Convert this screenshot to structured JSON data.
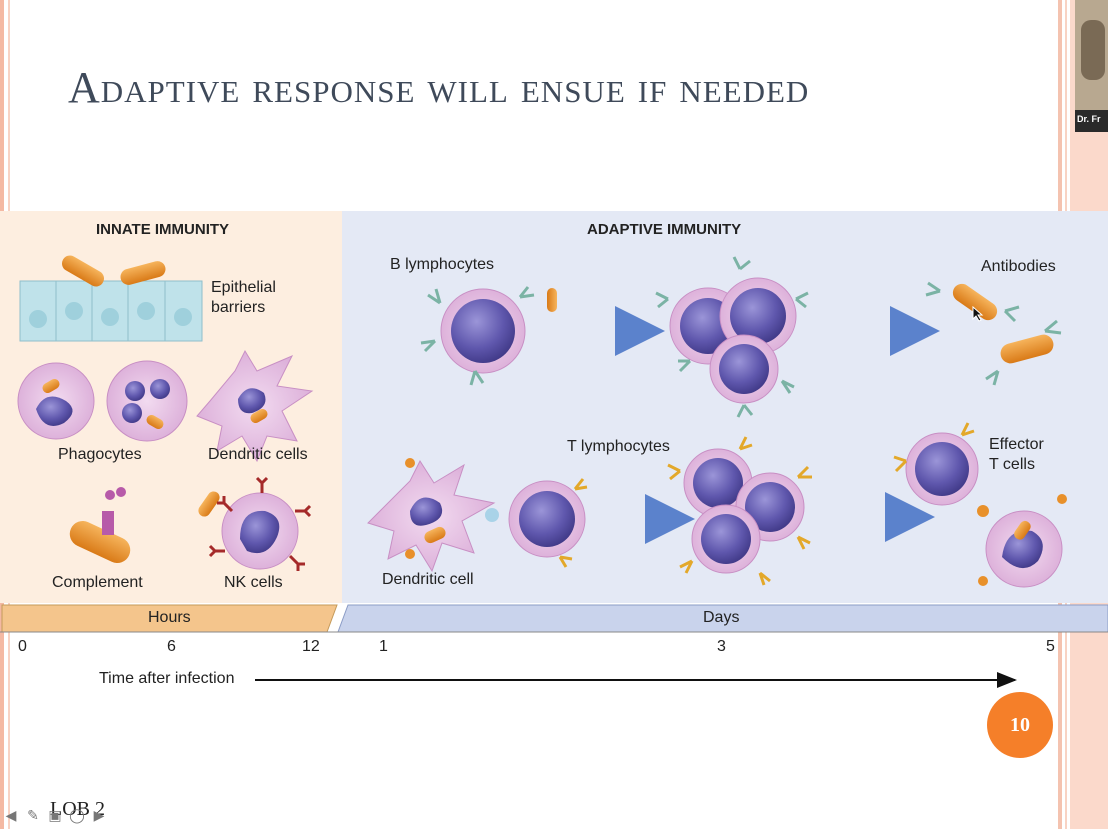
{
  "slide": {
    "title": "Adaptive response will ensue if needed",
    "page_number": "10",
    "footer_label": "LOB 2",
    "presenter_tag": "Dr. Fr"
  },
  "figure": {
    "innate_header": "INNATE IMMUNITY",
    "adaptive_header": "ADAPTIVE IMMUNITY",
    "labels": {
      "epithelial_1": "Epithelial",
      "epithelial_2": "barriers",
      "phagocytes": "Phagocytes",
      "dendritic_cells": "Dendritic cells",
      "complement": "Complement",
      "nk_cells": "NK cells",
      "b_lymphocytes": "B lymphocytes",
      "antibodies": "Antibodies",
      "t_lymphocytes": "T lymphocytes",
      "effector_1": "Effector",
      "effector_2": "T cells",
      "dendritic_cell": "Dendritic cell"
    },
    "timeline": {
      "hours_label": "Hours",
      "days_label": "Days",
      "ticks": [
        "0",
        "6",
        "12",
        "1",
        "3",
        "5"
      ],
      "axis_label": "Time after infection"
    }
  },
  "navigation": {
    "icons": [
      "prev-arrow-icon",
      "pen-icon",
      "slides-icon",
      "zoom-icon",
      "next-arrow-icon"
    ]
  },
  "colors": {
    "innate_bg": "#fdeee0",
    "adaptive_bg": "#e4e9f5",
    "badge": "#f57f29",
    "cell_purple": "#6a62b5",
    "bacteria_orange": "#e8902a",
    "arrow_blue": "#5b82cc"
  }
}
